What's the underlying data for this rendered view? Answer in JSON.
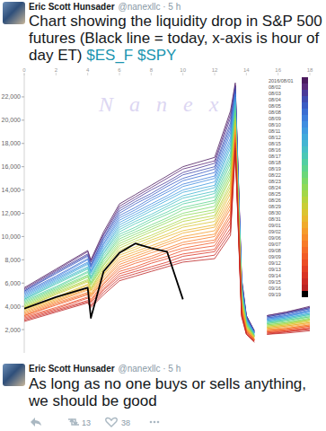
{
  "tweets": [
    {
      "author": "Eric Scott Hunsader",
      "meta": "@nanexllc · 5 h",
      "text": "Chart showing the liquidity drop in S&P 500 futures (Black line = today, x-axis is hour of day ET)",
      "cashtags": [
        "$ES_F",
        "$SPY"
      ]
    },
    {
      "author": "Eric Scott Hunsader",
      "meta": "@nanexllc · 5 h",
      "text": "As long as no one buys or sells anything, we should be good",
      "retweets": 13,
      "likes": 38
    }
  ],
  "chart_data": {
    "type": "line",
    "annotations": [
      "Nanex"
    ],
    "x": [
      0,
      2,
      4,
      4.2,
      5,
      6,
      7,
      8,
      9,
      10,
      12,
      13,
      13.3,
      13.7,
      14,
      14.5,
      15,
      15.3,
      16.5,
      18
    ],
    "xlim": [
      0,
      18
    ],
    "xticks": [
      0,
      2,
      4,
      6,
      8,
      10,
      12,
      14,
      16,
      18
    ],
    "ylim": [
      0,
      24000
    ],
    "yticks": [
      {
        "value": 2000,
        "label": "2,000"
      },
      {
        "value": 4000,
        "label": "4,000"
      },
      {
        "value": 6000,
        "label": "6,000"
      },
      {
        "value": 8000,
        "label": "8,000"
      },
      {
        "value": 10000,
        "label": "10,000"
      },
      {
        "value": 12000,
        "label": "12,000"
      },
      {
        "value": 14000,
        "label": "14,000"
      },
      {
        "value": 16000,
        "label": "16,000"
      },
      {
        "value": 18000,
        "label": "18,000"
      },
      {
        "value": 20000,
        "label": "20,000"
      },
      {
        "value": 22000,
        "label": "22,000"
      }
    ],
    "grid": false,
    "legend": "top-right",
    "series": [
      {
        "name": "2016/08/01",
        "color": "#4b1a5e",
        "values": [
          5600,
          7200,
          8800,
          8000,
          10400,
          12800,
          13600,
          14400,
          15200,
          16000,
          16800,
          20800,
          23200,
          6400,
          3200,
          1900,
          null,
          3200,
          3500,
          4000
        ]
      },
      {
        "name": "08/02",
        "color": "#5a2a7a",
        "values": [
          5500,
          7100,
          8700,
          7900,
          10200,
          12600,
          13400,
          14200,
          15000,
          15800,
          16500,
          20500,
          23000,
          6300,
          3200,
          1900,
          null,
          3200,
          3500,
          3900
        ]
      },
      {
        "name": "08/03",
        "color": "#4a3a99",
        "values": [
          5400,
          7000,
          8500,
          7800,
          10100,
          12400,
          13200,
          14000,
          14700,
          15500,
          16300,
          20200,
          22900,
          6200,
          3100,
          1900,
          null,
          3100,
          3400,
          3900
        ]
      },
      {
        "name": "08/04",
        "color": "#3f4cb0",
        "values": [
          5300,
          6900,
          8400,
          7600,
          9900,
          12200,
          13000,
          13700,
          14500,
          15300,
          16000,
          19800,
          22700,
          6100,
          3100,
          1800,
          null,
          3100,
          3400,
          3800
        ]
      },
      {
        "name": "08/05",
        "color": "#3a5cc4",
        "values": [
          5300,
          6800,
          8300,
          7500,
          9800,
          12000,
          12800,
          13500,
          14300,
          15000,
          15800,
          19500,
          22500,
          6000,
          3000,
          1800,
          null,
          3000,
          3300,
          3800
        ]
      },
      {
        "name": "08/08",
        "color": "#3a6dd2",
        "values": [
          5200,
          6600,
          8100,
          7400,
          9600,
          11800,
          12500,
          13300,
          14000,
          14800,
          15500,
          19200,
          22300,
          5900,
          3000,
          1800,
          null,
          3000,
          3200,
          3700
        ]
      },
      {
        "name": "08/09",
        "color": "#3d7ddb",
        "values": [
          5100,
          6500,
          8000,
          7300,
          9400,
          11600,
          12300,
          13100,
          13800,
          14500,
          15200,
          18900,
          22200,
          5800,
          2900,
          1700,
          null,
          2900,
          3200,
          3600
        ]
      },
      {
        "name": "08/10",
        "color": "#3f8de0",
        "values": [
          5000,
          6400,
          7800,
          7100,
          9300,
          11400,
          12100,
          12800,
          13500,
          14300,
          15000,
          18500,
          22000,
          5700,
          2900,
          1700,
          null,
          2900,
          3100,
          3600
        ]
      },
      {
        "name": "08/11",
        "color": "#3f9be0",
        "values": [
          4900,
          6300,
          7700,
          7000,
          9100,
          11200,
          11900,
          12600,
          13300,
          14000,
          14700,
          18200,
          21800,
          5600,
          2800,
          1700,
          null,
          2800,
          3100,
          3500
        ]
      },
      {
        "name": "08/12",
        "color": "#40a9db",
        "values": [
          4800,
          6200,
          7600,
          6900,
          8900,
          11000,
          11700,
          12400,
          13100,
          13800,
          14400,
          17900,
          21600,
          5500,
          2800,
          1700,
          null,
          2800,
          3000,
          3400
        ]
      },
      {
        "name": "08/15",
        "color": "#42b5d2",
        "values": [
          4700,
          6100,
          7400,
          6800,
          8800,
          10800,
          11500,
          12200,
          12800,
          13500,
          14200,
          17600,
          21500,
          5400,
          2700,
          1600,
          null,
          2700,
          3000,
          3400
        ]
      },
      {
        "name": "08/16",
        "color": "#46c0c5",
        "values": [
          4600,
          6000,
          7300,
          6600,
          8600,
          10600,
          11300,
          11900,
          12600,
          13300,
          13900,
          17200,
          21300,
          5300,
          2700,
          1600,
          null,
          2700,
          2900,
          3300
        ]
      },
      {
        "name": "08/17",
        "color": "#4ac8b5",
        "values": [
          4600,
          5900,
          7200,
          6500,
          8500,
          10400,
          11100,
          11700,
          12400,
          13000,
          13700,
          16900,
          21100,
          5200,
          2600,
          1600,
          null,
          2600,
          2900,
          3300
        ]
      },
      {
        "name": "08/18",
        "color": "#52cfa2",
        "values": [
          4500,
          5700,
          7000,
          6400,
          8300,
          10200,
          10800,
          11500,
          12100,
          12800,
          13400,
          16600,
          20900,
          5100,
          2600,
          1500,
          null,
          2600,
          2800,
          3200
        ]
      },
      {
        "name": "08/19",
        "color": "#5dd48e",
        "values": [
          4400,
          5600,
          6900,
          6300,
          8100,
          10000,
          10600,
          11300,
          11900,
          12500,
          13100,
          16300,
          20800,
          5000,
          2500,
          1500,
          null,
          2500,
          2800,
          3100
        ]
      },
      {
        "name": "08/22",
        "color": "#6bd77a",
        "values": [
          4300,
          5500,
          6700,
          6100,
          8000,
          9800,
          10400,
          11000,
          11600,
          12300,
          12900,
          15900,
          20600,
          4900,
          2500,
          1500,
          null,
          2500,
          2700,
          3100
        ]
      },
      {
        "name": "08/23",
        "color": "#7cd967",
        "values": [
          4200,
          5400,
          6600,
          6000,
          7800,
          9600,
          10200,
          10800,
          11400,
          12000,
          12600,
          15600,
          20400,
          4800,
          2400,
          1400,
          null,
          2400,
          2600,
          3000
        ]
      },
      {
        "name": "08/24",
        "color": "#8fd956",
        "values": [
          4100,
          5300,
          6500,
          5900,
          7600,
          9400,
          10000,
          10600,
          11200,
          11800,
          12300,
          15300,
          20200,
          4700,
          2400,
          1400,
          null,
          2400,
          2600,
          2900
        ]
      },
      {
        "name": "08/25",
        "color": "#a3d748",
        "values": [
          4000,
          5200,
          6300,
          5800,
          7500,
          9200,
          9800,
          10400,
          10900,
          11500,
          12100,
          15000,
          20100,
          4600,
          2300,
          1400,
          null,
          2300,
          2500,
          2900
        ]
      },
      {
        "name": "08/26",
        "color": "#b7d33d",
        "values": [
          3900,
          5100,
          6200,
          5600,
          7300,
          9000,
          9600,
          10100,
          10700,
          11300,
          11800,
          14600,
          19900,
          4500,
          2300,
          1400,
          null,
          2300,
          2500,
          2800
        ]
      },
      {
        "name": "08/29",
        "color": "#cacd35",
        "values": [
          3900,
          5000,
          6100,
          5500,
          7200,
          8800,
          9400,
          9900,
          10500,
          11000,
          11600,
          14300,
          19700,
          4400,
          2200,
          1300,
          null,
          2200,
          2400,
          2800
        ]
      },
      {
        "name": "08/30",
        "color": "#dbc430",
        "values": [
          3800,
          4800,
          5900,
          5400,
          7000,
          8600,
          9100,
          9700,
          10200,
          10800,
          11300,
          14000,
          19500,
          4300,
          2200,
          1300,
          null,
          2200,
          2400,
          2700
        ]
      },
      {
        "name": "08/31",
        "color": "#e8b82d",
        "values": [
          3700,
          4700,
          5800,
          5300,
          6800,
          8400,
          8900,
          9500,
          10000,
          10500,
          11000,
          13700,
          19400,
          4200,
          2100,
          1300,
          null,
          2100,
          2300,
          2600
        ]
      },
      {
        "name": "09/01",
        "color": "#f0aa2b",
        "values": [
          3600,
          4600,
          5600,
          5100,
          6700,
          8200,
          8700,
          9200,
          9700,
          10300,
          10800,
          13300,
          19200,
          4100,
          2100,
          1200,
          null,
          2100,
          2300,
          2600
        ]
      },
      {
        "name": "09/02",
        "color": "#f59b2a",
        "values": [
          3500,
          4500,
          5500,
          5000,
          6500,
          8000,
          8500,
          9000,
          9500,
          10000,
          10500,
          13000,
          19000,
          4000,
          2000,
          1200,
          null,
          2000,
          2200,
          2500
        ]
      },
      {
        "name": "09/06",
        "color": "#f78b29",
        "values": [
          3400,
          4400,
          5400,
          4900,
          6300,
          7800,
          8300,
          8800,
          9300,
          9800,
          10200,
          12700,
          18800,
          3900,
          2000,
          1200,
          null,
          2000,
          2100,
          2400
        ]
      },
      {
        "name": "09/07",
        "color": "#f77b28",
        "values": [
          3300,
          4300,
          5200,
          4800,
          6200,
          7600,
          8100,
          8600,
          9000,
          9500,
          10000,
          12400,
          18700,
          3800,
          1900,
          1100,
          null,
          1900,
          2100,
          2400
        ]
      },
      {
        "name": "09/08",
        "color": "#f56b27",
        "values": [
          3200,
          4200,
          5100,
          4600,
          6000,
          7400,
          7900,
          8300,
          8800,
          9300,
          9700,
          12000,
          18500,
          3700,
          1900,
          1100,
          null,
          1900,
          2000,
          2300
        ]
      },
      {
        "name": "09/09",
        "color": "#f15c26",
        "values": [
          3200,
          4100,
          5000,
          4500,
          5900,
          7200,
          7700,
          8100,
          8600,
          9000,
          9500,
          11700,
          18300,
          3600,
          1800,
          1100,
          null,
          1800,
          2000,
          2300
        ]
      },
      {
        "name": "09/12",
        "color": "#eb4d25",
        "values": [
          3100,
          3900,
          4800,
          4400,
          5700,
          7000,
          7400,
          7900,
          8300,
          8800,
          9200,
          11400,
          18100,
          3500,
          1800,
          1100,
          null,
          1800,
          1900,
          2200
        ]
      },
      {
        "name": "09/13",
        "color": "#e33f24",
        "values": [
          3000,
          3800,
          4700,
          4300,
          5500,
          6800,
          7200,
          7700,
          8100,
          8500,
          8900,
          11100,
          18000,
          3400,
          1700,
          1000,
          null,
          1700,
          1900,
          2100
        ]
      },
      {
        "name": "09/14",
        "color": "#d93324",
        "values": [
          2900,
          3700,
          4500,
          4100,
          5400,
          6600,
          7000,
          7400,
          7800,
          8300,
          8700,
          10700,
          17800,
          3300,
          1700,
          1000,
          null,
          1700,
          1800,
          2100
        ]
      },
      {
        "name": "09/15",
        "color": "#cc2a24",
        "values": [
          2800,
          3600,
          4400,
          4000,
          5200,
          6400,
          6800,
          7200,
          7600,
          8000,
          8400,
          10400,
          17600,
          3200,
          1600,
          1000,
          null,
          1600,
          1800,
          2000
        ]
      },
      {
        "name": "09/16",
        "color": "#bb2323",
        "values": [
          2700,
          3500,
          4300,
          3900,
          5000,
          6200,
          6600,
          7000,
          7400,
          7800,
          8100,
          10100,
          17400,
          3100,
          1600,
          900,
          null,
          1600,
          1700,
          1900
        ]
      },
      {
        "name": "09/19",
        "color": "#000000",
        "values": [
          3800,
          4800,
          5600,
          3000,
          7000,
          8600,
          9400,
          9000,
          8700,
          4600,
          null,
          null,
          null,
          null,
          null,
          null,
          null,
          null,
          null,
          null
        ]
      }
    ]
  }
}
